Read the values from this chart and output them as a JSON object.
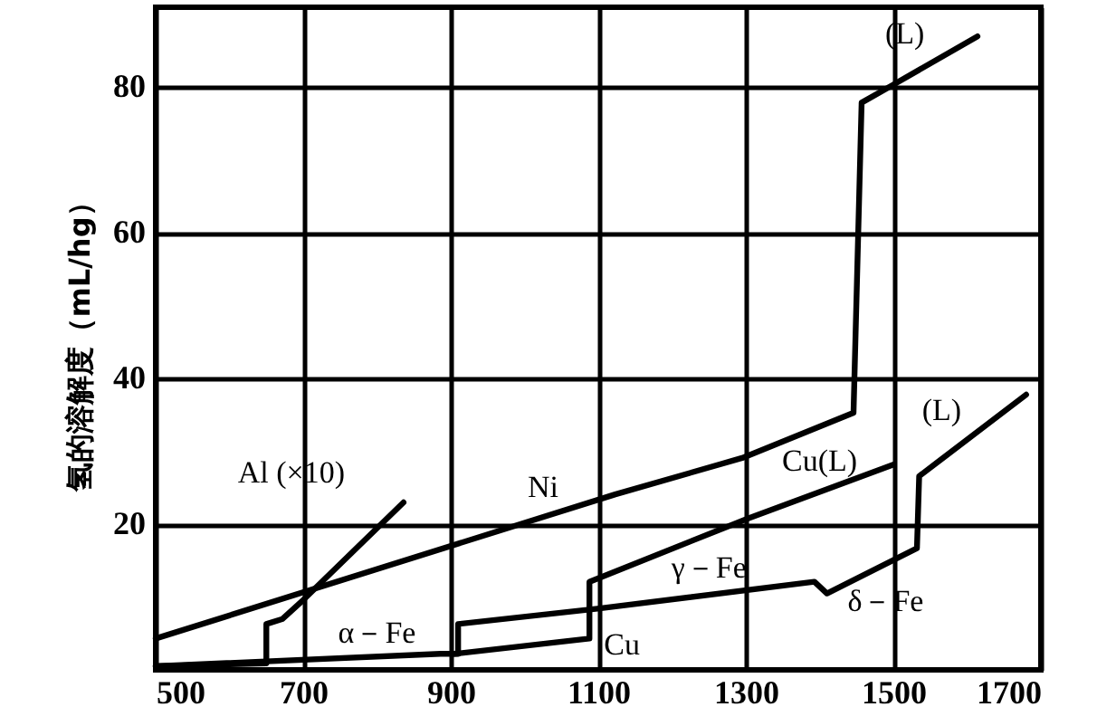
{
  "chart_data": {
    "type": "line",
    "ylabel": "氢的溶解度（mL/hg）",
    "xlim": [
      500,
      1700
    ],
    "xticks": [
      500,
      700,
      900,
      1100,
      1300,
      1500,
      1700
    ],
    "ylim": [
      0,
      91
    ],
    "yticks": [
      20,
      40,
      60,
      80
    ],
    "grid": true,
    "series": [
      {
        "color": "#000000",
        "x": [
          500,
          1123,
          1295,
          1446,
          1457,
          1499,
          1614
        ],
        "values": [
          4.3,
          24.1,
          29.1,
          35.3,
          77.9,
          80.3,
          87
        ]
      },
      {
        "color": "#000000",
        "x": [
          500,
          650,
          650,
          672,
          700,
          836
        ],
        "values": [
          0.5,
          0.9,
          6.3,
          7,
          9.6,
          23
        ]
      },
      {
        "color": "#000000",
        "x": [
          500,
          886,
          910,
          910,
          1099,
          1393,
          1410,
          1532,
          1535,
          1680
        ],
        "values": [
          0.5,
          2.2,
          2.2,
          6.3,
          8.4,
          12.1,
          10.5,
          16.7,
          26.6,
          37.8
        ]
      },
      {
        "color": "#000000",
        "x": [
          905,
          1088,
          1088,
          1303,
          1500
        ],
        "values": [
          2.2,
          4.3,
          12.1,
          20.8,
          28.2
        ]
      }
    ],
    "annotations": [
      {
        "text": "Al (×10)",
        "x": 836,
        "y": 23
      },
      {
        "text": "Ni",
        "x": 1025,
        "y": 21
      },
      {
        "text": "α－Fe",
        "x": 800,
        "y": 1.8
      },
      {
        "text": "γ－Fe",
        "x": 1250,
        "y": 10.4
      },
      {
        "text": "δ－Fe",
        "x": 1460,
        "y": 13
      },
      {
        "text": "Cu",
        "x": 1088,
        "y": 4.3
      },
      {
        "text": "Cu(L)",
        "x": 1400,
        "y": 24.4
      },
      {
        "text": "(L)",
        "x": 1600,
        "y": 31.6
      },
      {
        "text": "(L)",
        "x": 1550,
        "y": 83.3
      }
    ]
  }
}
